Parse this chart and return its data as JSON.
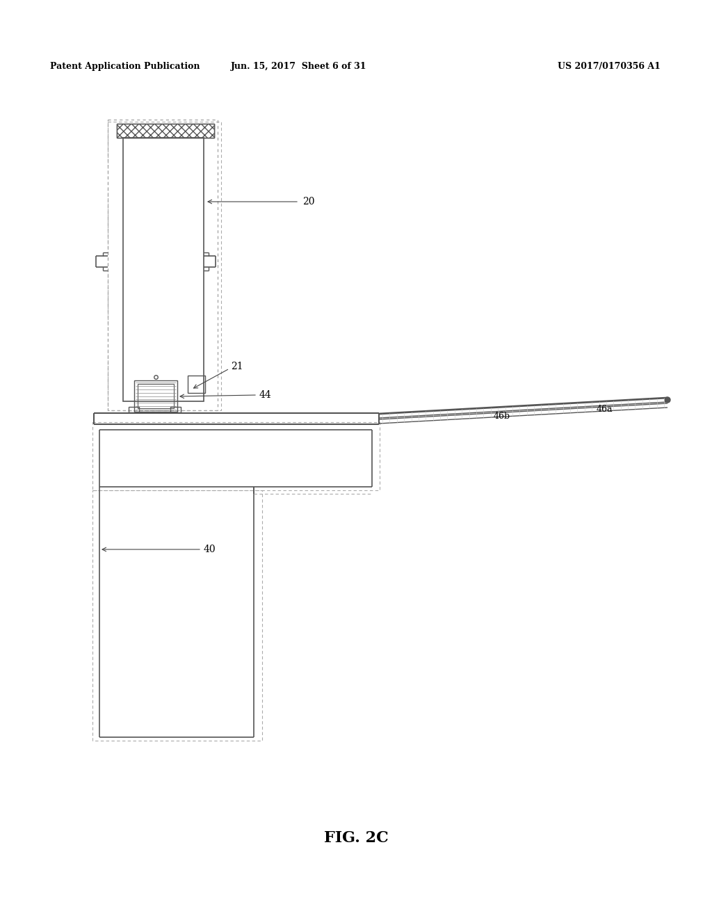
{
  "bg_color": "#ffffff",
  "header_left": "Patent Application Publication",
  "header_mid": "Jun. 15, 2017  Sheet 6 of 31",
  "header_right": "US 2017/0170356 A1",
  "fig_label": "FIG. 2C",
  "line_color": "#555555",
  "dot_color": "#aaaaaa"
}
